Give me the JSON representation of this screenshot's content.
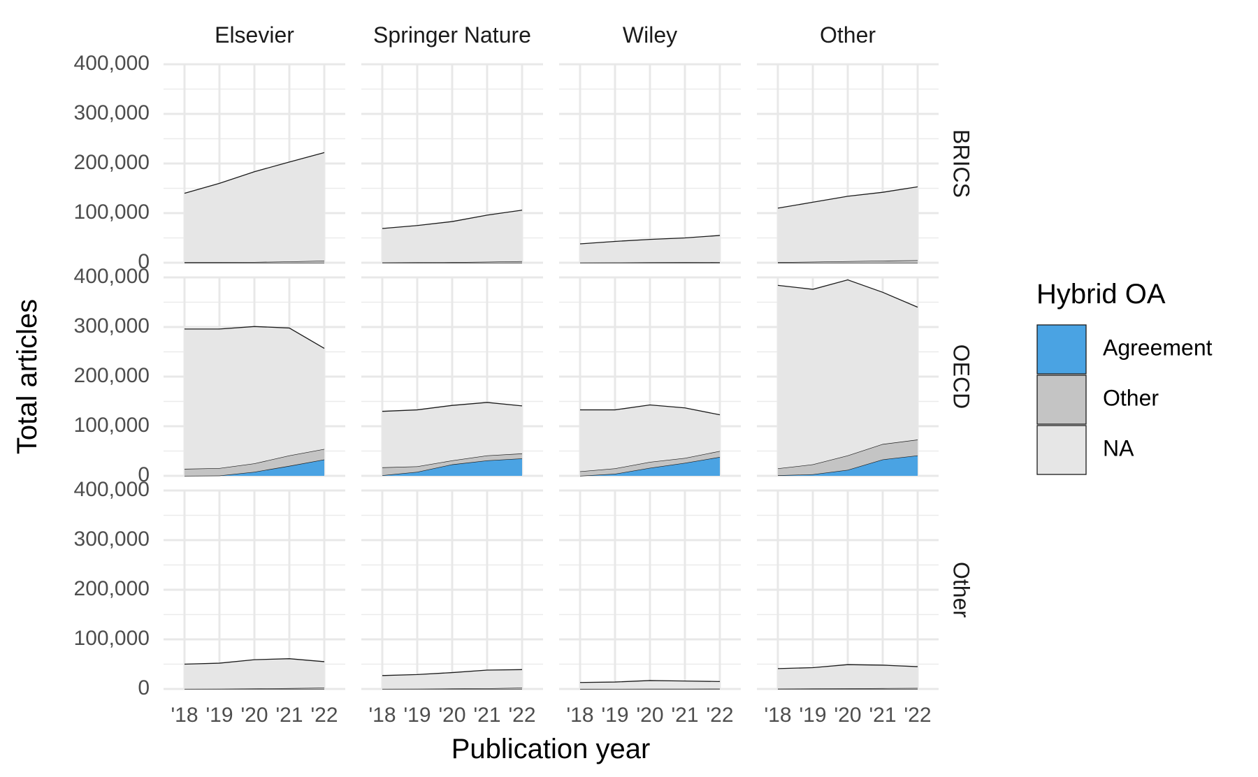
{
  "chart_data": {
    "type": "area",
    "stacked": true,
    "title": "",
    "xlabel": "Publication year",
    "ylabel": "Total articles",
    "x": [
      "'18",
      "'19",
      "'20",
      "'21",
      "'22"
    ],
    "y_ticks": [
      "0",
      "100,000",
      "200,000",
      "300,000",
      "400,000"
    ],
    "ylim": [
      0,
      400000
    ],
    "grid": true,
    "legend": {
      "title": "Hybrid OA",
      "position": "right",
      "entries": [
        {
          "name": "Agreement",
          "color": "#4aa3e3"
        },
        {
          "name": "Other",
          "color": "#c4c4c4"
        },
        {
          "name": "NA",
          "color": "#e6e6e6"
        }
      ]
    },
    "columns": [
      "Elsevier",
      "Springer Nature",
      "Wiley",
      "Other"
    ],
    "rows": [
      "BRICS",
      "OECD",
      "Other"
    ],
    "panels": [
      {
        "row": "BRICS",
        "col": "Elsevier",
        "series": {
          "Agreement": [
            0,
            0,
            0,
            0,
            0
          ],
          "Other": [
            1000,
            1000,
            1500,
            2500,
            4000
          ],
          "NA": [
            139000,
            159000,
            182000,
            200500,
            218000
          ]
        }
      },
      {
        "row": "BRICS",
        "col": "Springer Nature",
        "series": {
          "Agreement": [
            0,
            0,
            0,
            0,
            0
          ],
          "Other": [
            500,
            800,
            1000,
            2000,
            3000
          ],
          "NA": [
            68500,
            74200,
            82000,
            94000,
            103000
          ]
        }
      },
      {
        "row": "BRICS",
        "col": "Wiley",
        "series": {
          "Agreement": [
            0,
            0,
            0,
            0,
            0
          ],
          "Other": [
            300,
            500,
            800,
            1000,
            1500
          ],
          "NA": [
            37700,
            42500,
            46200,
            49000,
            53500
          ]
        }
      },
      {
        "row": "BRICS",
        "col": "Other",
        "series": {
          "Agreement": [
            0,
            0,
            0,
            0,
            0
          ],
          "Other": [
            1000,
            2000,
            3000,
            4000,
            5000
          ],
          "NA": [
            109000,
            120000,
            131000,
            138000,
            148000
          ]
        }
      },
      {
        "row": "OECD",
        "col": "Elsevier",
        "series": {
          "Agreement": [
            0,
            500,
            8000,
            20000,
            33000
          ],
          "Other": [
            14000,
            15000,
            17000,
            21000,
            21000
          ],
          "NA": [
            282000,
            280500,
            276000,
            257000,
            203000
          ]
        }
      },
      {
        "row": "OECD",
        "col": "Springer Nature",
        "series": {
          "Agreement": [
            1000,
            8000,
            23000,
            31000,
            35000
          ],
          "Other": [
            16000,
            11000,
            8000,
            10000,
            10000
          ],
          "NA": [
            113000,
            114000,
            111000,
            107000,
            96000
          ]
        }
      },
      {
        "row": "OECD",
        "col": "Wiley",
        "series": {
          "Agreement": [
            0,
            4000,
            16000,
            26000,
            38000
          ],
          "Other": [
            9000,
            11000,
            12000,
            10000,
            12000
          ],
          "NA": [
            124000,
            118000,
            115000,
            101000,
            73000
          ]
        }
      },
      {
        "row": "OECD",
        "col": "Other",
        "series": {
          "Agreement": [
            1000,
            3000,
            12000,
            33000,
            41000
          ],
          "Other": [
            14000,
            20000,
            29000,
            31000,
            32000
          ],
          "NA": [
            369000,
            353000,
            354000,
            306000,
            267000
          ]
        }
      },
      {
        "row": "Other",
        "col": "Elsevier",
        "series": {
          "Agreement": [
            0,
            0,
            0,
            0,
            0
          ],
          "Other": [
            200,
            400,
            800,
            1500,
            2500
          ],
          "NA": [
            49800,
            51600,
            58200,
            59500,
            52500
          ]
        }
      },
      {
        "row": "Other",
        "col": "Springer Nature",
        "series": {
          "Agreement": [
            0,
            0,
            0,
            0,
            0
          ],
          "Other": [
            200,
            400,
            800,
            1200,
            2500
          ],
          "NA": [
            26800,
            28600,
            32200,
            36800,
            36500
          ]
        }
      },
      {
        "row": "Other",
        "col": "Wiley",
        "series": {
          "Agreement": [
            0,
            0,
            0,
            0,
            0
          ],
          "Other": [
            100,
            200,
            300,
            400,
            500
          ],
          "NA": [
            12900,
            13800,
            16700,
            15600,
            14500
          ]
        }
      },
      {
        "row": "Other",
        "col": "Other",
        "series": {
          "Agreement": [
            0,
            0,
            0,
            0,
            0
          ],
          "Other": [
            500,
            800,
            1000,
            1500,
            2000
          ],
          "NA": [
            40500,
            42200,
            48000,
            46500,
            43000
          ]
        }
      }
    ]
  }
}
